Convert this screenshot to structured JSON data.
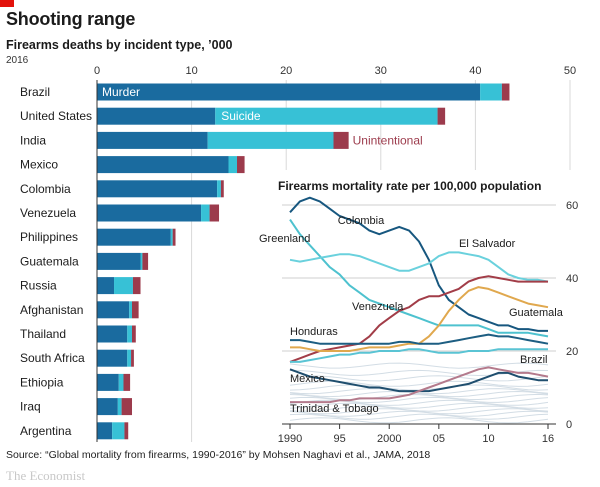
{
  "header": {
    "title": "Shooting range",
    "subtitle": "Firearms deaths by incident type, ’000",
    "year": "2016"
  },
  "footer": {
    "source": "Source: “Global mortality from firearms, 1990-2016” by Mohsen Naghavi et al., JAMA, 2018",
    "brand": "The Economist"
  },
  "colors": {
    "murder": "#1a6b9f",
    "suicide": "#37c1d6",
    "unintentional": "#9c3b4c",
    "colombia": "#17577f",
    "greenland": "#4ec2cf",
    "el_salvador": "#6ad1dd",
    "venezuela": "#a23d48",
    "guatemala": "#e0a84e",
    "honduras": "#1d5e82",
    "brazil": "#5ac4d4",
    "mexico": "#1f4e6e",
    "trinidad_tobago": "#b47a8c",
    "background_countries": "#d3dde5"
  },
  "chart_data": [
    {
      "type": "bar",
      "subtype": "stacked-horizontal",
      "title": "Firearms deaths by incident type, ’000",
      "subtitle": "2016",
      "xlim": [
        0,
        50
      ],
      "xticks": [
        0,
        10,
        20,
        30,
        40,
        50
      ],
      "categories": [
        "Brazil",
        "United States",
        "India",
        "Mexico",
        "Colombia",
        "Venezuela",
        "Philippines",
        "Guatemala",
        "Russia",
        "Afghanistan",
        "Thailand",
        "South Africa",
        "Ethiopia",
        "Iraq",
        "Argentina"
      ],
      "series": [
        {
          "name": "Murder",
          "values": [
            40.5,
            12.5,
            11.7,
            13.9,
            12.7,
            11.0,
            7.8,
            4.6,
            1.8,
            3.4,
            3.2,
            3.2,
            2.3,
            2.2,
            1.6
          ]
        },
        {
          "name": "Suicide",
          "values": [
            2.3,
            23.5,
            13.3,
            0.9,
            0.4,
            0.9,
            0.2,
            0.2,
            2.0,
            0.3,
            0.5,
            0.4,
            0.5,
            0.4,
            1.3
          ]
        },
        {
          "name": "Unintentional",
          "values": [
            0.8,
            0.8,
            1.6,
            0.8,
            0.3,
            1.0,
            0.3,
            0.6,
            0.8,
            0.7,
            0.4,
            0.3,
            0.7,
            1.1,
            0.4
          ]
        }
      ],
      "series_labels_inline": true
    },
    {
      "type": "line",
      "title": "Firearms mortality rate per 100,000 population",
      "x": [
        1990,
        1991,
        1992,
        1993,
        1994,
        1995,
        1996,
        1997,
        1998,
        1999,
        2000,
        2001,
        2002,
        2003,
        2004,
        2005,
        2006,
        2007,
        2008,
        2009,
        2010,
        2011,
        2012,
        2013,
        2014,
        2015,
        2016
      ],
      "xticks": [
        1990,
        1995,
        2000,
        2005,
        2010,
        2016
      ],
      "xtick_labels": [
        "1990",
        "95",
        "2000",
        "05",
        "10",
        "16"
      ],
      "ylim": [
        0,
        60
      ],
      "yticks": [
        0,
        20,
        40,
        60
      ],
      "series": [
        {
          "name": "Colombia",
          "values": [
            58,
            61,
            62,
            61,
            59,
            57,
            56,
            55,
            53,
            52,
            53,
            54,
            53,
            50,
            45,
            38,
            34,
            32,
            30,
            29,
            28,
            27,
            27,
            26,
            26,
            25.5,
            25.5
          ]
        },
        {
          "name": "Greenland",
          "values": [
            56,
            52,
            49,
            46,
            43,
            41,
            38,
            36,
            34,
            33,
            32,
            31,
            30,
            29,
            28,
            27,
            27,
            27,
            27,
            27,
            26,
            25,
            25,
            25,
            25,
            24.5,
            24
          ]
        },
        {
          "name": "El Salvador",
          "values": [
            45,
            44.5,
            45,
            45.5,
            46,
            46.5,
            46.5,
            46,
            45,
            44,
            43,
            42,
            42,
            43,
            44,
            46,
            47,
            47,
            46.5,
            46,
            45,
            43,
            41,
            40,
            39.5,
            39.5,
            39
          ]
        },
        {
          "name": "Venezuela",
          "values": [
            17,
            18,
            19,
            20,
            20.5,
            21,
            21.5,
            22,
            24,
            27,
            29,
            31,
            32,
            34,
            35,
            35,
            36,
            37,
            39,
            40,
            40.5,
            40,
            39.5,
            39,
            39,
            39,
            39
          ]
        },
        {
          "name": "Guatemala",
          "values": [
            21,
            21,
            20.5,
            20,
            20,
            20,
            20,
            20.5,
            21,
            21,
            21,
            21.5,
            22,
            22,
            24,
            27,
            31,
            34,
            36.5,
            37.5,
            37,
            36,
            35,
            34,
            33,
            32.5,
            32
          ]
        },
        {
          "name": "Honduras",
          "values": [
            23,
            23,
            22.5,
            22,
            22,
            22,
            22,
            22,
            22,
            22,
            22,
            22.5,
            22.5,
            22,
            22,
            22,
            22.5,
            23,
            23.5,
            24,
            24.5,
            24,
            24,
            23.5,
            23,
            22.5,
            22
          ]
        },
        {
          "name": "Brazil",
          "values": [
            17,
            17,
            17.5,
            18,
            18.5,
            19,
            19,
            19.5,
            19.5,
            20,
            20,
            20,
            20.5,
            20.5,
            20,
            19.5,
            19.5,
            19.5,
            20,
            20,
            20,
            20.5,
            20.5,
            20.5,
            20.5,
            20.5,
            20.5
          ]
        },
        {
          "name": "Mexico",
          "values": [
            15,
            14,
            13,
            12.5,
            12,
            11.5,
            11,
            10.5,
            10,
            10,
            9.5,
            9,
            9,
            9,
            9,
            9.5,
            10,
            10.5,
            11,
            12,
            13,
            14,
            14,
            13,
            12.5,
            12,
            12
          ]
        },
        {
          "name": "Trinidad & Tobago",
          "values": [
            6,
            6,
            6,
            6,
            6,
            6.5,
            6.5,
            7,
            7,
            7,
            7,
            7.5,
            8,
            9,
            10,
            11,
            12,
            13,
            14,
            15,
            15.5,
            15,
            14.5,
            14,
            14,
            13.5,
            13
          ]
        }
      ],
      "background_series": "other countries (unlabelled)"
    }
  ]
}
